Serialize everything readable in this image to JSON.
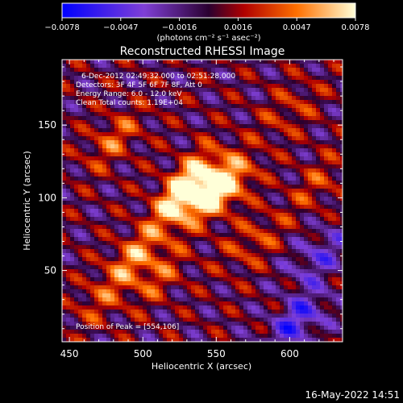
{
  "chart_data": {
    "type": "heatmap",
    "title": "Reconstructed RHESSI Image",
    "xlabel": "Heliocentric X (arcsec)",
    "ylabel": "Heliocentric Y (arcsec)",
    "xlim": [
      445,
      636
    ],
    "ylim": [
      1,
      195
    ],
    "x_ticks": [
      450,
      500,
      550,
      600
    ],
    "y_ticks": [
      50,
      100,
      150
    ],
    "colorbar": {
      "label": "(photons cm⁻² s⁻¹ asec⁻²)",
      "range": [
        -0.0078,
        0.0078
      ],
      "ticks": [
        "−0.0078",
        "−0.0047",
        "−0.0016",
        "0.0016",
        "0.0047",
        "0.0078"
      ],
      "colormap": "rainbow-purple-red-yellow-white"
    },
    "annotations": [
      "6-Dec-2012 02:49:32.000 to 02:51:28.000",
      "Detectors: 3F 4F 5F 6F 7F 8F, Att 0",
      "Energy Range: 6.0 - 12.0 keV",
      "Clean    Total counts: 1.19E+04"
    ],
    "peak_label": "Position of Peak = [554,106]",
    "peak": {
      "x": 554,
      "y": 106,
      "value": 0.0078
    },
    "sources": [
      {
        "x": 554,
        "y": 106,
        "value": 0.0078
      },
      {
        "x": 527,
        "y": 98,
        "value": 0.006
      },
      {
        "x": 535,
        "y": 115,
        "value": 0.0052
      },
      {
        "x": 495,
        "y": 60,
        "value": 0.0045
      },
      {
        "x": 480,
        "y": 140,
        "value": 0.0035
      },
      {
        "x": 510,
        "y": 45,
        "value": 0.003
      },
      {
        "x": 575,
        "y": 70,
        "value": 0.003
      },
      {
        "x": 600,
        "y": 160,
        "value": 0.0025
      },
      {
        "x": 470,
        "y": 30,
        "value": 0.0025
      },
      {
        "x": 620,
        "y": 110,
        "value": 0.0025
      },
      {
        "x": 605,
        "y": 15,
        "value": -0.005
      },
      {
        "x": 620,
        "y": 60,
        "value": -0.0035
      }
    ]
  },
  "footer": {
    "date": "16-May-2022 14:51"
  }
}
